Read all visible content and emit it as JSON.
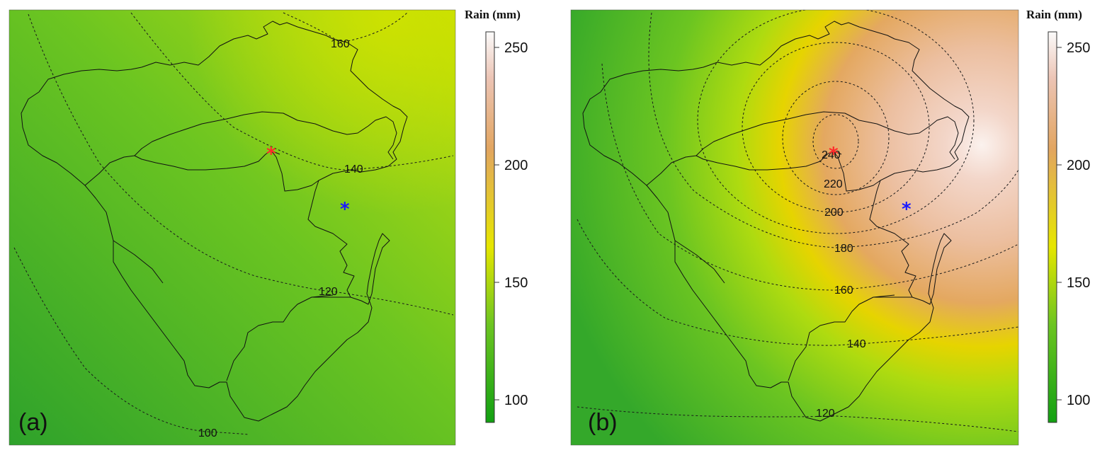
{
  "panels": [
    {
      "label": "(a)",
      "colorbar_title": "Rain (mm)",
      "contour_labels": [
        "160",
        "140",
        "120",
        "100"
      ],
      "red_marker": "*",
      "blue_marker": "*"
    },
    {
      "label": "(b)",
      "colorbar_title": "Rain (mm)",
      "contour_labels": [
        "240",
        "220",
        "200",
        "180",
        "160",
        "140",
        "120"
      ],
      "red_marker": "*",
      "blue_marker": "*"
    }
  ],
  "colorbar_ticks": [
    "250",
    "200",
    "150",
    "100"
  ],
  "colors": {
    "low": "#2aa52a",
    "mid_green": "#6cc61c",
    "yellow": "#e6e600",
    "orange": "#e0a060",
    "pink": "#f0c2b0",
    "white": "#ffffff",
    "red_marker": "#ff2a2a",
    "blue_marker": "#1a1aff"
  }
}
